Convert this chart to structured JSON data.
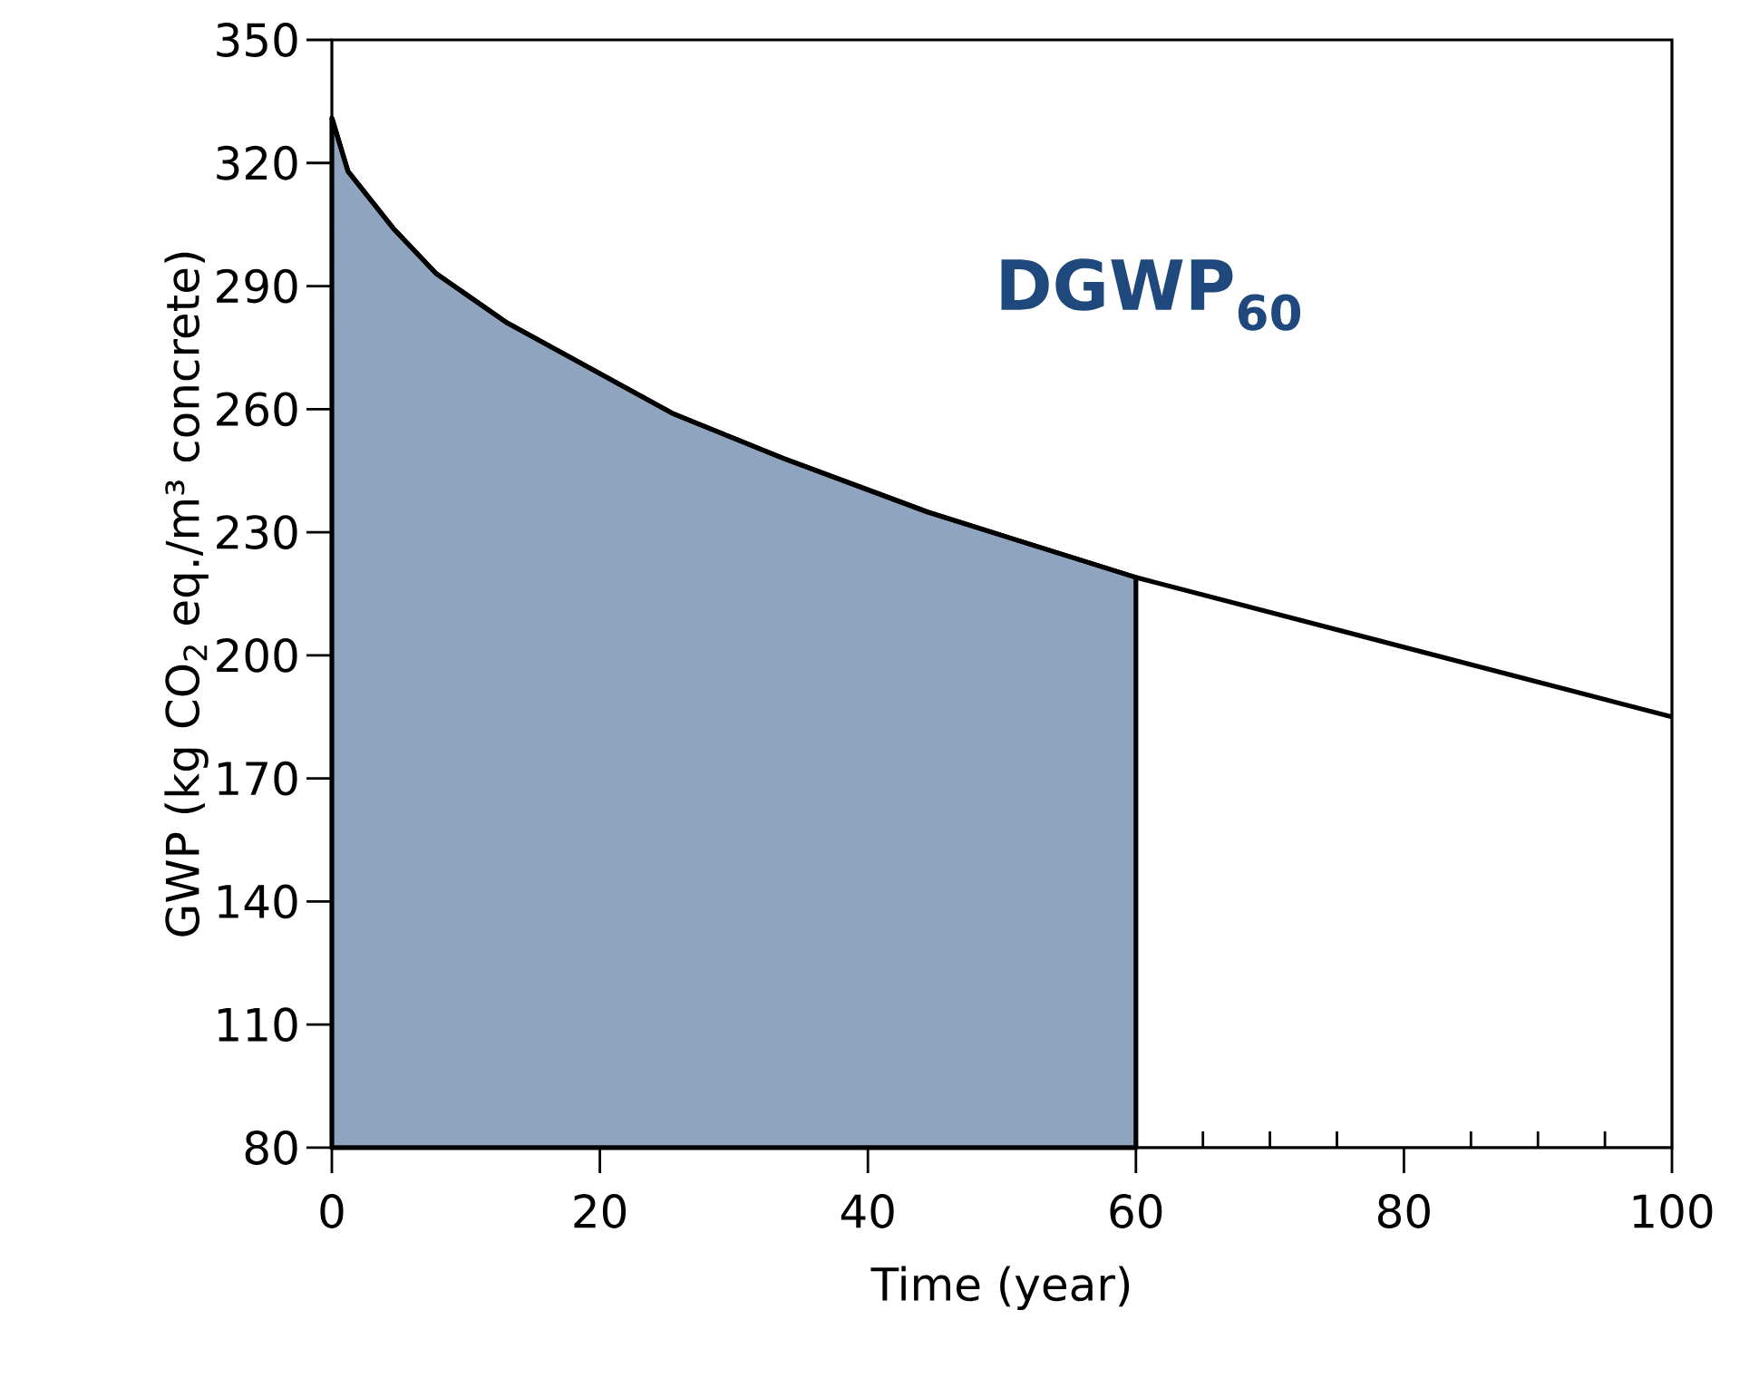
{
  "chart_data": {
    "type": "line",
    "xlabel": "Time (year)",
    "ylabel": "GWP (kg CO$_{2}$ eq./m³ concrete)",
    "xlim": [
      0,
      100
    ],
    "ylim": [
      80,
      350
    ],
    "xticks": [
      0,
      20,
      40,
      60,
      {
        "value": 65,
        "label": null
      },
      {
        "value": 70,
        "label": null
      },
      {
        "value": 75,
        "label": null
      },
      80,
      {
        "value": 85,
        "label": null
      },
      {
        "value": 90,
        "label": null
      },
      {
        "value": 95,
        "label": null
      },
      100
    ],
    "yticks": [
      80,
      110,
      140,
      170,
      200,
      230,
      260,
      290,
      320,
      350
    ],
    "series": [
      {
        "type": "area",
        "color": "#8fa4be",
        "x": [
          0,
          1.2,
          4.6,
          7.8,
          13.1,
          25.4,
          33.7,
          44.4,
          51.2,
          60
        ],
        "values": [
          331,
          318,
          304,
          293,
          281,
          259,
          248,
          235,
          228,
          219
        ]
      },
      {
        "color": "#000000",
        "x": [
          0,
          1.2,
          4.6,
          7.8,
          13.1,
          25.4,
          33.7,
          44.4,
          51.2,
          60,
          80,
          100
        ],
        "values": [
          331,
          318,
          304,
          293,
          281,
          259,
          248,
          235,
          228,
          219,
          202,
          185
        ]
      }
    ],
    "annotations": [
      "DGWP$_{60}$"
    ]
  }
}
